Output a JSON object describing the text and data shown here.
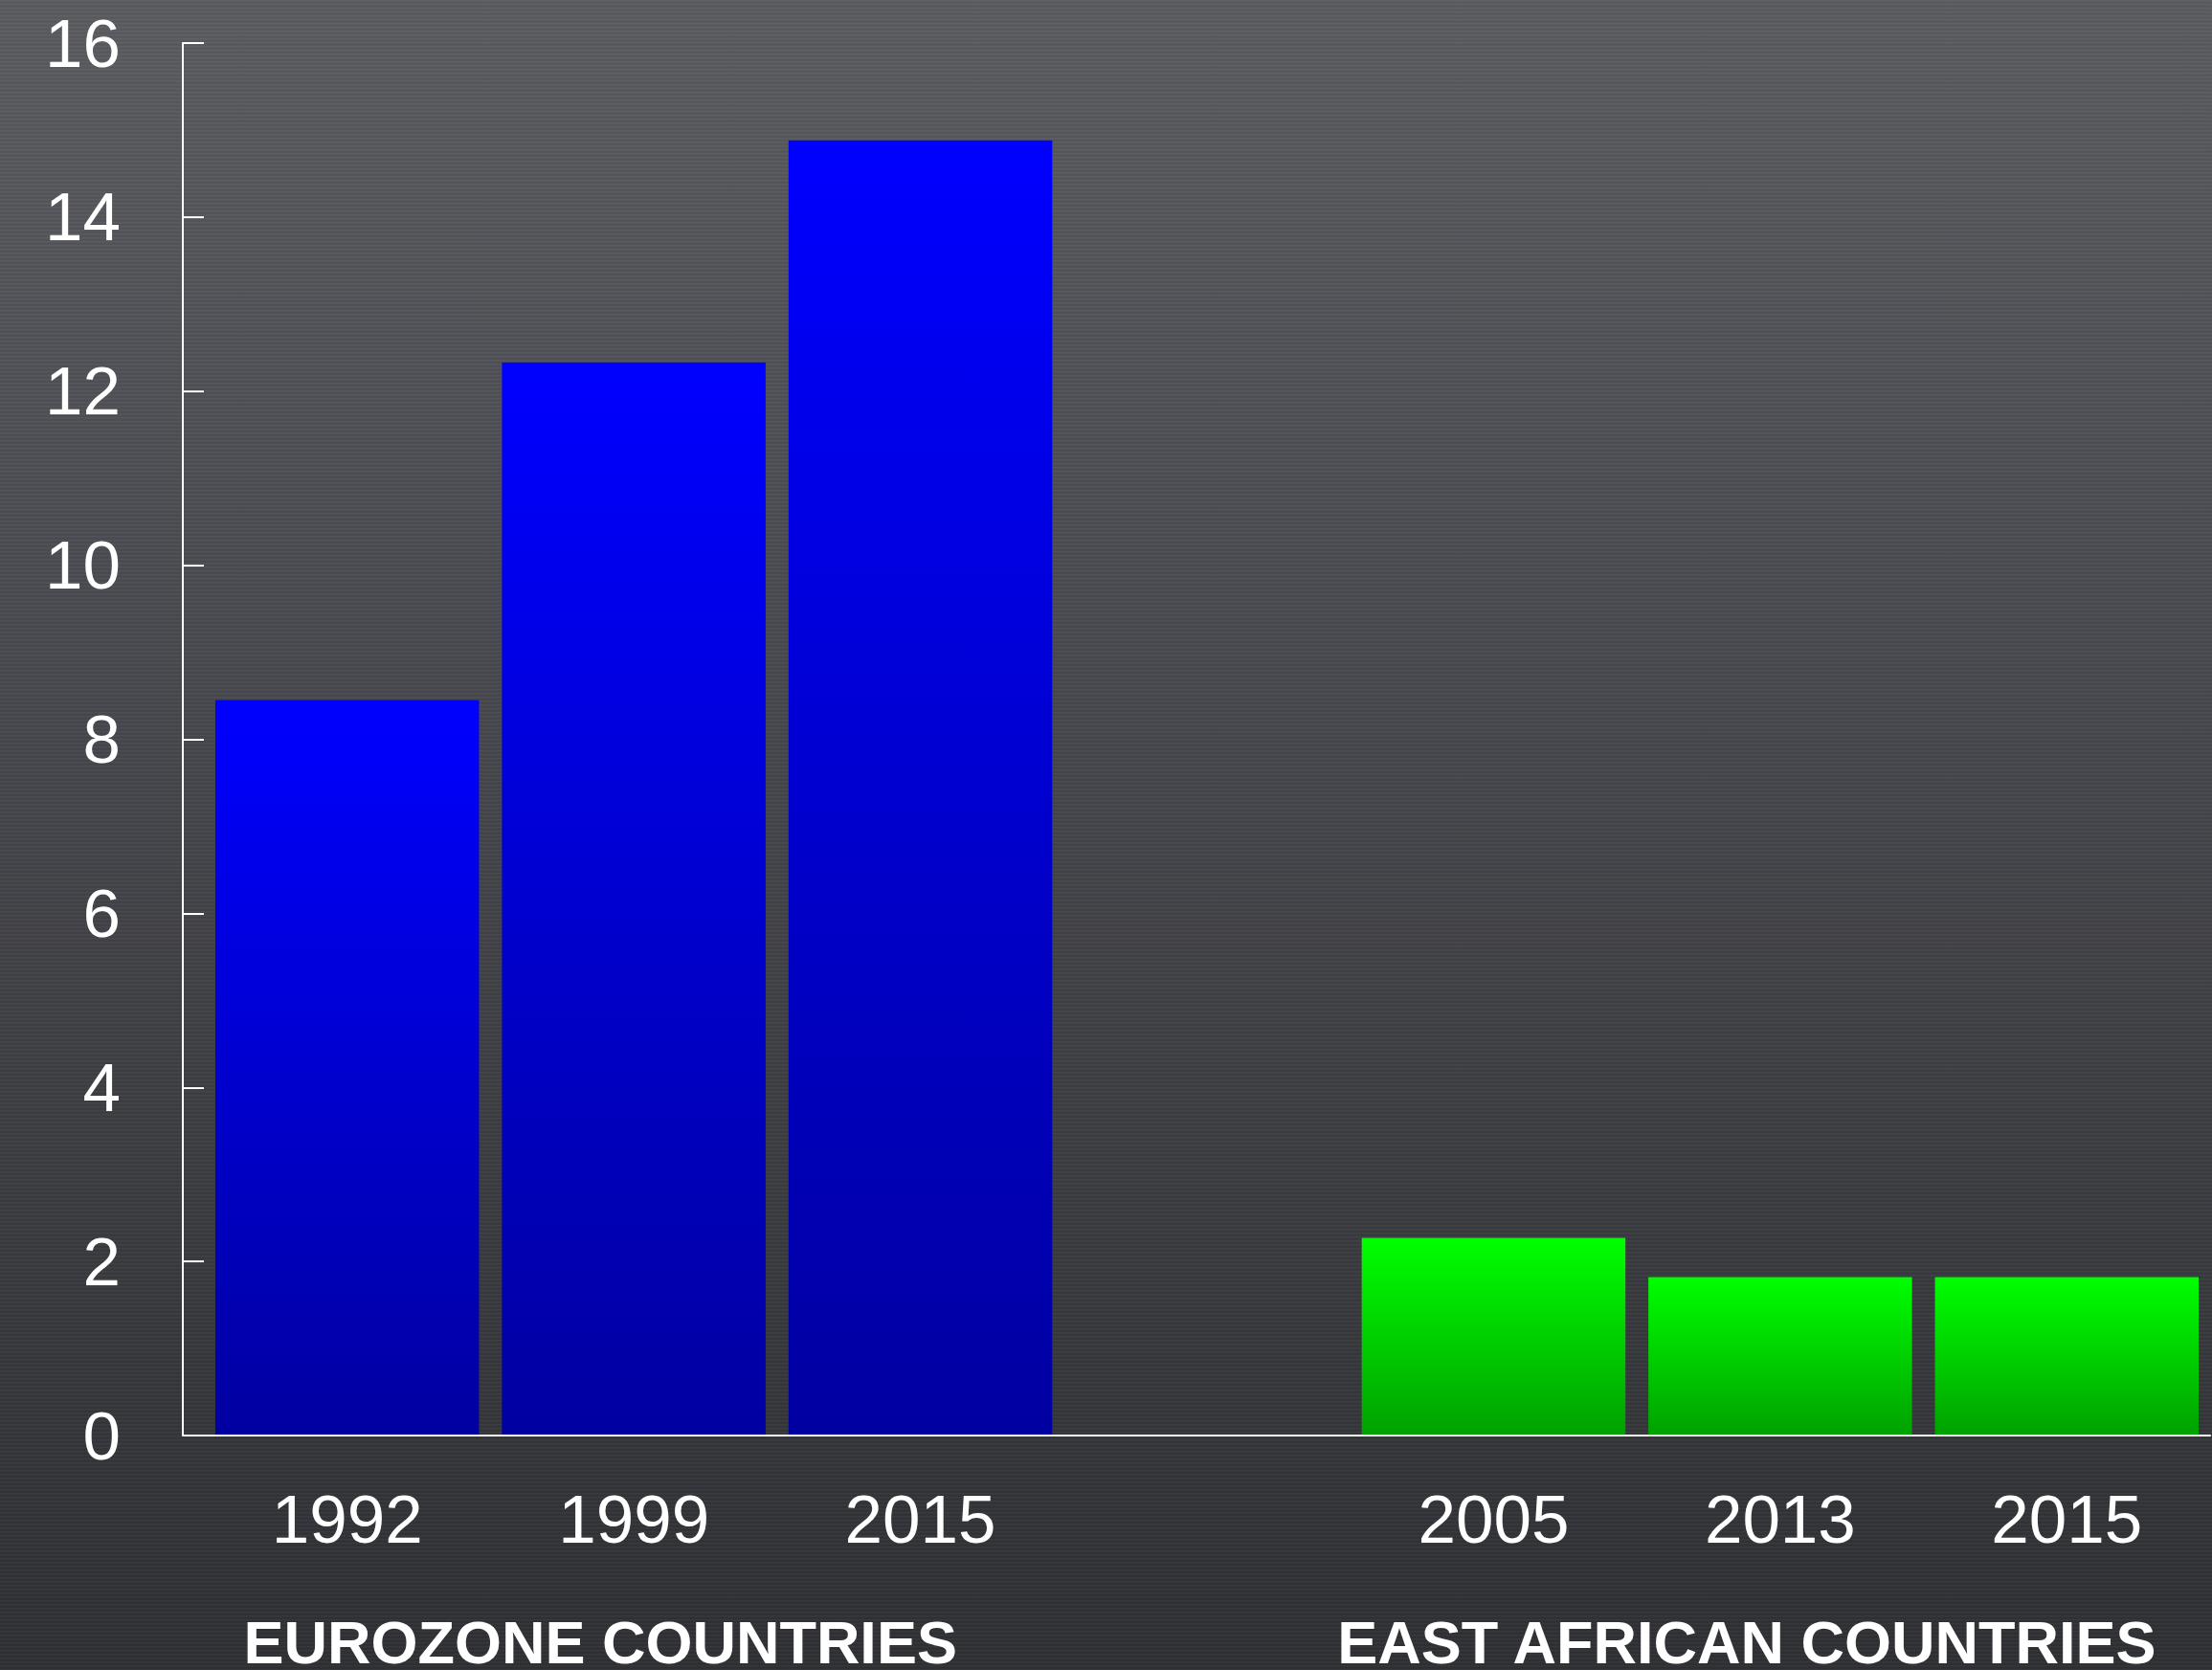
{
  "chart_data": {
    "type": "bar",
    "categories": [
      "1992",
      "1999",
      "2015",
      null,
      "2005",
      "2013",
      "2015"
    ],
    "values": [
      8.45,
      12.33,
      14.88,
      null,
      2.27,
      1.82,
      1.82
    ],
    "colors": [
      "#0000ff",
      "#0000ff",
      "#0000ff",
      null,
      "#00ff00",
      "#00ff00",
      "#00ff00"
    ],
    "ylim": [
      0,
      16
    ],
    "yticks": [
      0,
      2,
      4,
      6,
      8,
      10,
      12,
      14,
      16
    ],
    "grid": false,
    "annotations": [
      "EUROZONE COUNTRIES",
      "EAST AFRICAN COUNTRIES"
    ]
  }
}
